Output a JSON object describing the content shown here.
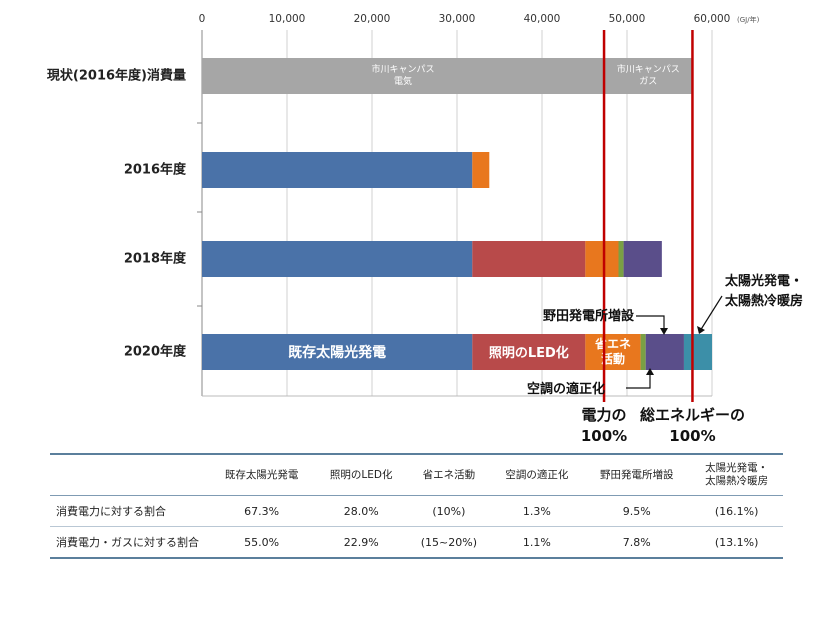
{
  "chart_data": {
    "type": "bar",
    "orientation": "horizontal",
    "stacked": true,
    "unit": "(GJ/年)",
    "xlim": [
      0,
      60000
    ],
    "x_ticks": [
      "0",
      "10,000",
      "20,000",
      "30,000",
      "40,000",
      "50,000",
      "60,000"
    ],
    "grid": true,
    "categories": [
      "現状(2016年度)消費量",
      "2016年度",
      "2018年度",
      "2020年度"
    ],
    "series": [
      {
        "name": "市川キャンパス電気",
        "color": "#a6a6a6",
        "values": [
          47300,
          0,
          0,
          0
        ]
      },
      {
        "name": "市川キャンパスガス",
        "color": "#a6a6a6",
        "values": [
          10400,
          0,
          0,
          0
        ]
      },
      {
        "name": "既存太陽光発電",
        "color": "#4a72a8",
        "values": [
          0,
          31800,
          31800,
          31800
        ]
      },
      {
        "name": "照明のLED化",
        "color": "#b84a4a",
        "values": [
          0,
          0,
          13300,
          13300
        ]
      },
      {
        "name": "省エネ活動",
        "color": "#e8771e",
        "values": [
          0,
          2000,
          3900,
          6500
        ]
      },
      {
        "name": "空調の適正化",
        "color": "#7aa044",
        "values": [
          0,
          0,
          600,
          600
        ]
      },
      {
        "name": "野田発電所増設",
        "color": "#5a4e8a",
        "values": [
          0,
          0,
          4500,
          4500
        ]
      },
      {
        "name": "太陽光発電・太陽熱冷暖房",
        "color": "#3c8fa8",
        "values": [
          0,
          0,
          0,
          3300
        ]
      }
    ],
    "segment_labels": {
      "electric": [
        "市川キャンパス",
        "電気"
      ],
      "gas": [
        "市川キャンパス",
        "ガス"
      ],
      "existing_solar": "既存太陽光発電",
      "led": "照明のLED化",
      "activity": [
        "省エネ",
        "活動"
      ]
    },
    "callouts": {
      "noda": "野田発電所増設",
      "solar_thermal": [
        "太陽光発電・",
        "太陽熱冷暖房"
      ],
      "aircon": "空調の適正化"
    },
    "reference_lines": [
      {
        "value": 47300,
        "color": "#c00000",
        "label": [
          "電力の",
          "100%"
        ]
      },
      {
        "value": 57700,
        "color": "#c00000",
        "label": [
          "総エネルギーの",
          "100%"
        ]
      }
    ]
  },
  "table": {
    "headers": [
      "",
      "既存太陽光発電",
      "照明のLED化",
      "省エネ活動",
      "空調の適正化",
      "野田発電所増設",
      "太陽光発電・\n太陽熱冷暖房"
    ],
    "rows": [
      {
        "label": "消費電力に対する割合",
        "cells": [
          "67.3%",
          "28.0%",
          "(10%)",
          "1.3%",
          "9.5%",
          "(16.1%)"
        ]
      },
      {
        "label": "消費電力・ガスに対する割合",
        "cells": [
          "55.0%",
          "22.9%",
          "(15~20%)",
          "1.1%",
          "7.8%",
          "(13.1%)"
        ]
      }
    ]
  }
}
